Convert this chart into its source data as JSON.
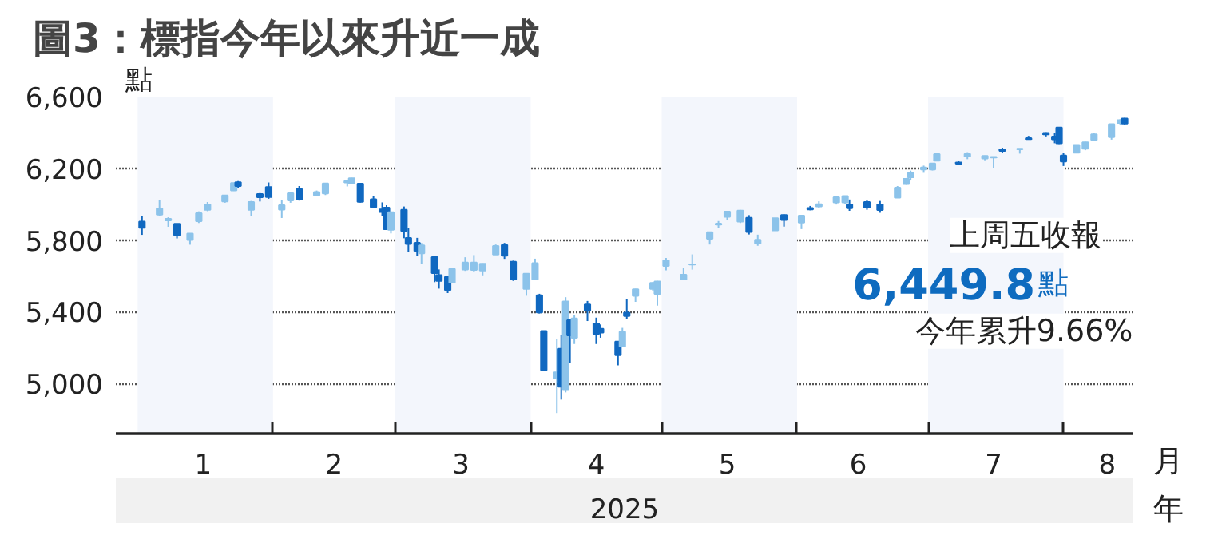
{
  "chart_data": {
    "type": "candlestick",
    "title": "圖3：標指今年以來升近一成",
    "ylabel": "點",
    "xlabel": "月",
    "annotations": [
      "上周五收報",
      "6,449.8",
      "點",
      "今年累升9.66%",
      "2025",
      "年"
    ],
    "x": [
      "2025-01-02",
      "2025-01-06",
      "2025-01-08",
      "2025-01-10",
      "2025-01-13",
      "2025-01-15",
      "2025-01-17",
      "2025-01-21",
      "2025-01-23",
      "2025-01-24",
      "2025-01-27",
      "2025-01-29",
      "2025-01-31",
      "2025-02-03",
      "2025-02-05",
      "2025-02-07",
      "2025-02-11",
      "2025-02-13",
      "2025-02-18",
      "2025-02-19",
      "2025-02-21",
      "2025-02-24",
      "2025-02-26",
      "2025-02-27",
      "2025-02-28",
      "2025-03-03",
      "2025-03-04",
      "2025-03-06",
      "2025-03-07",
      "2025-03-10",
      "2025-03-11",
      "2025-03-13",
      "2025-03-14",
      "2025-03-17",
      "2025-03-19",
      "2025-03-21",
      "2025-03-24",
      "2025-03-26",
      "2025-03-28",
      "2025-03-31",
      "2025-04-02",
      "2025-04-03",
      "2025-04-04",
      "2025-04-07",
      "2025-04-08",
      "2025-04-09",
      "2025-04-10",
      "2025-04-11",
      "2025-04-14",
      "2025-04-16",
      "2025-04-17",
      "2025-04-21",
      "2025-04-22",
      "2025-04-23",
      "2025-04-25",
      "2025-04-29",
      "2025-04-30",
      "2025-05-02",
      "2025-05-06",
      "2025-05-08",
      "2025-05-12",
      "2025-05-14",
      "2025-05-16",
      "2025-05-19",
      "2025-05-21",
      "2025-05-23",
      "2025-05-27",
      "2025-05-29",
      "2025-06-02",
      "2025-06-04",
      "2025-06-06",
      "2025-06-10",
      "2025-06-12",
      "2025-06-13",
      "2025-06-17",
      "2025-06-20",
      "2025-06-24",
      "2025-06-26",
      "2025-06-27",
      "2025-06-30",
      "2025-07-02",
      "2025-07-03",
      "2025-07-08",
      "2025-07-10",
      "2025-07-14",
      "2025-07-16",
      "2025-07-18",
      "2025-07-22",
      "2025-07-24",
      "2025-07-28",
      "2025-07-30",
      "2025-07-31",
      "2025-08-01",
      "2025-08-04",
      "2025-08-06",
      "2025-08-08",
      "2025-08-12",
      "2025-08-14",
      "2025-08-15"
    ],
    "ohlc": [
      [
        5903,
        5935,
        5829,
        5868
      ],
      [
        5942,
        6021,
        5932,
        5975
      ],
      [
        5910,
        5927,
        5874,
        5918
      ],
      [
        5890,
        5890,
        5809,
        5827
      ],
      [
        5800,
        5838,
        5774,
        5836
      ],
      [
        5905,
        5960,
        5895,
        5950
      ],
      [
        5969,
        6012,
        5961,
        5997
      ],
      [
        6015,
        6052,
        6008,
        6049
      ],
      [
        6077,
        6119,
        6074,
        6118
      ],
      [
        6122,
        6129,
        6089,
        6101
      ],
      [
        5969,
        6018,
        5932,
        6012
      ],
      [
        6057,
        6062,
        6015,
        6039
      ],
      [
        6096,
        6121,
        6030,
        6040
      ],
      [
        5970,
        6022,
        5923,
        5994
      ],
      [
        6021,
        6062,
        6008,
        6061
      ],
      [
        6084,
        6101,
        6020,
        6026
      ],
      [
        6050,
        6076,
        6043,
        6068
      ],
      [
        6060,
        6116,
        6051,
        6115
      ],
      [
        6121,
        6129,
        6099,
        6129
      ],
      [
        6117,
        6147,
        6111,
        6144
      ],
      [
        6114,
        6115,
        6009,
        6013
      ],
      [
        6027,
        6044,
        5982,
        5983
      ],
      [
        5971,
        6010,
        5935,
        5956
      ],
      [
        5981,
        5994,
        5858,
        5861
      ],
      [
        5857,
        5959,
        5837,
        5955
      ],
      [
        5969,
        5987,
        5810,
        5850
      ],
      [
        5812,
        5866,
        5733,
        5778
      ],
      [
        5785,
        5812,
        5711,
        5739
      ],
      [
        5726,
        5783,
        5667,
        5770
      ],
      [
        5705,
        5705,
        5565,
        5615
      ],
      [
        5604,
        5636,
        5529,
        5572
      ],
      [
        5594,
        5597,
        5504,
        5521
      ],
      [
        5563,
        5645,
        5563,
        5639
      ],
      [
        5635,
        5704,
        5628,
        5675
      ],
      [
        5633,
        5716,
        5622,
        5675
      ],
      [
        5630,
        5670,
        5603,
        5668
      ],
      [
        5719,
        5775,
        5719,
        5767
      ],
      [
        5772,
        5784,
        5695,
        5712
      ],
      [
        5679,
        5685,
        5572,
        5581
      ],
      [
        5527,
        5613,
        5489,
        5612
      ],
      [
        5581,
        5696,
        5578,
        5671
      ],
      [
        5492,
        5500,
        5390,
        5396
      ],
      [
        5292,
        5292,
        5070,
        5074
      ],
      [
        5028,
        5246,
        4835,
        5062
      ],
      [
        5193,
        5268,
        4910,
        4982
      ],
      [
        4967,
        5481,
        4950,
        5457
      ],
      [
        5353,
        5353,
        5115,
        5268
      ],
      [
        5255,
        5381,
        5220,
        5363
      ],
      [
        5441,
        5460,
        5348,
        5406
      ],
      [
        5335,
        5367,
        5220,
        5276
      ],
      [
        5305,
        5329,
        5255,
        5283
      ],
      [
        5233,
        5233,
        5101,
        5158
      ],
      [
        5207,
        5310,
        5207,
        5288
      ],
      [
        5395,
        5470,
        5360,
        5376
      ],
      [
        5489,
        5528,
        5455,
        5525
      ],
      [
        5528,
        5565,
        5515,
        5561
      ],
      [
        5500,
        5572,
        5434,
        5569
      ],
      [
        5655,
        5700,
        5631,
        5686
      ],
      [
        5580,
        5644,
        5578,
        5607
      ],
      [
        5663,
        5720,
        5635,
        5664
      ],
      [
        5807,
        5845,
        5775,
        5844
      ],
      [
        5886,
        5906,
        5868,
        5892
      ],
      [
        5929,
        5959,
        5912,
        5958
      ],
      [
        5903,
        5968,
        5895,
        5964
      ],
      [
        5924,
        5939,
        5831,
        5845
      ],
      [
        5781,
        5830,
        5768,
        5802
      ],
      [
        5854,
        5923,
        5852,
        5922
      ],
      [
        5939,
        5943,
        5875,
        5912
      ],
      [
        5897,
        5937,
        5861,
        5936
      ],
      [
        5978,
        5990,
        5966,
        5971
      ],
      [
        5987,
        6016,
        5978,
        6000
      ],
      [
        6010,
        6044,
        5998,
        6039
      ],
      [
        6010,
        6045,
        6003,
        6045
      ],
      [
        5997,
        6026,
        5963,
        5977
      ],
      [
        6012,
        6024,
        5969,
        5982
      ],
      [
        5999,
        6018,
        5952,
        5967
      ],
      [
        6037,
        6101,
        6037,
        6092
      ],
      [
        6112,
        6146,
        6108,
        6141
      ],
      [
        6150,
        6187,
        6132,
        6173
      ],
      [
        6193,
        6215,
        6175,
        6205
      ],
      [
        6193,
        6227,
        6188,
        6227
      ],
      [
        6243,
        6284,
        6241,
        6279
      ],
      [
        6233,
        6242,
        6218,
        6226
      ],
      [
        6266,
        6290,
        6251,
        6280
      ],
      [
        6255,
        6271,
        6245,
        6269
      ],
      [
        6260,
        6266,
        6201,
        6264
      ],
      [
        6305,
        6315,
        6285,
        6297
      ],
      [
        6306,
        6310,
        6282,
        6309
      ],
      [
        6368,
        6381,
        6360,
        6363
      ],
      [
        6397,
        6401,
        6378,
        6390
      ],
      [
        6377,
        6399,
        6340,
        6362
      ],
      [
        6427,
        6428,
        6336,
        6339
      ],
      [
        6271,
        6288,
        6213,
        6238
      ],
      [
        6287,
        6330,
        6287,
        6330
      ],
      [
        6309,
        6348,
        6301,
        6345
      ],
      [
        6358,
        6395,
        6358,
        6389
      ],
      [
        6374,
        6446,
        6360,
        6446
      ],
      [
        6453,
        6474,
        6441,
        6469
      ],
      [
        6478,
        6481,
        6445,
        6449.8
      ]
    ],
    "colors": [
      "#1068c0",
      "#8cc3ea",
      "#8cc3ea",
      "#1068c0",
      "#8cc3ea",
      "#8cc3ea",
      "#8cc3ea",
      "#8cc3ea",
      "#8cc3ea",
      "#1068c0",
      "#8cc3ea",
      "#1068c0",
      "#1068c0",
      "#8cc3ea",
      "#8cc3ea",
      "#1068c0",
      "#8cc3ea",
      "#8cc3ea",
      "#8cc3ea",
      "#8cc3ea",
      "#1068c0",
      "#1068c0",
      "#1068c0",
      "#1068c0",
      "#8cc3ea",
      "#1068c0",
      "#1068c0",
      "#1068c0",
      "#8cc3ea",
      "#1068c0",
      "#1068c0",
      "#1068c0",
      "#8cc3ea",
      "#8cc3ea",
      "#8cc3ea",
      "#8cc3ea",
      "#8cc3ea",
      "#1068c0",
      "#1068c0",
      "#8cc3ea",
      "#8cc3ea",
      "#1068c0",
      "#1068c0",
      "#8cc3ea",
      "#1068c0",
      "#8cc3ea",
      "#1068c0",
      "#8cc3ea",
      "#1068c0",
      "#1068c0",
      "#1068c0",
      "#1068c0",
      "#8cc3ea",
      "#1068c0",
      "#8cc3ea",
      "#8cc3ea",
      "#8cc3ea",
      "#8cc3ea",
      "#8cc3ea",
      "#8cc3ea",
      "#8cc3ea",
      "#8cc3ea",
      "#8cc3ea",
      "#8cc3ea",
      "#1068c0",
      "#8cc3ea",
      "#8cc3ea",
      "#1068c0",
      "#8cc3ea",
      "#1068c0",
      "#8cc3ea",
      "#8cc3ea",
      "#8cc3ea",
      "#1068c0",
      "#1068c0",
      "#1068c0",
      "#8cc3ea",
      "#8cc3ea",
      "#8cc3ea",
      "#8cc3ea",
      "#8cc3ea",
      "#8cc3ea",
      "#1068c0",
      "#8cc3ea",
      "#8cc3ea",
      "#8cc3ea",
      "#1068c0",
      "#8cc3ea",
      "#1068c0",
      "#1068c0",
      "#1068c0",
      "#1068c0",
      "#1068c0",
      "#8cc3ea",
      "#8cc3ea",
      "#8cc3ea",
      "#8cc3ea",
      "#8cc3ea",
      "#1068c0"
    ],
    "xlim": [
      "2024-12-27",
      "2025-08-17"
    ],
    "xticks": [
      {
        "value": "2025-01-16",
        "label": "1"
      },
      {
        "value": "2025-02-01",
        "label": null
      },
      {
        "value": "2025-02-15",
        "label": "2"
      },
      {
        "value": "2025-03-01",
        "label": null
      },
      {
        "value": "2025-03-16",
        "label": "3"
      },
      {
        "value": "2025-04-01",
        "label": null
      },
      {
        "value": "2025-04-16",
        "label": "4"
      },
      {
        "value": "2025-05-01",
        "label": null
      },
      {
        "value": "2025-05-16",
        "label": "5"
      },
      {
        "value": "2025-06-01",
        "label": null
      },
      {
        "value": "2025-06-15",
        "label": "6"
      },
      {
        "value": "2025-07-01",
        "label": null
      },
      {
        "value": "2025-07-16",
        "label": "7"
      },
      {
        "value": "2025-08-01",
        "label": null
      },
      {
        "value": "2025-08-11",
        "label": "8"
      }
    ],
    "ylim": [
      4720,
      6600
    ],
    "yticks": [
      {
        "value": 5000,
        "label": "5,000"
      },
      {
        "value": 5400,
        "label": "5,400"
      },
      {
        "value": 5800,
        "label": "5,800"
      },
      {
        "value": 6200,
        "label": "6,200"
      },
      {
        "value": 6600,
        "label": "6,600"
      }
    ],
    "grid": "y",
    "bands": [
      {
        "axis": "x",
        "from": "2025-01-01",
        "to": "2025-02-01",
        "color": "#f3f6fc"
      },
      {
        "axis": "x",
        "from": "2025-03-01",
        "to": "2025-04-01",
        "color": "#f3f6fc"
      },
      {
        "axis": "x",
        "from": "2025-05-01",
        "to": "2025-06-01",
        "color": "#f3f6fc"
      },
      {
        "axis": "x",
        "from": "2025-07-01",
        "to": "2025-08-01",
        "color": "#f3f6fc"
      }
    ]
  }
}
